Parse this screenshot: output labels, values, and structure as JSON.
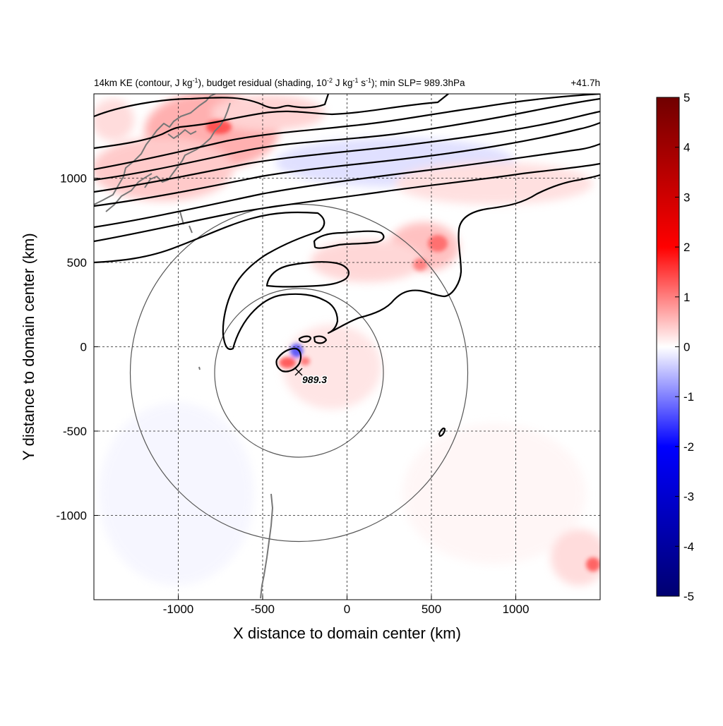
{
  "title_segments": [
    {
      "t": "14km KE (contour, J kg"
    },
    {
      "t": "-1",
      "sup": true
    },
    {
      "t": "), budget residual (shading, 10"
    },
    {
      "t": "-2",
      "sup": true
    },
    {
      "t": " J kg"
    },
    {
      "t": "-1",
      "sup": true
    },
    {
      "t": " s"
    },
    {
      "t": "-1",
      "sup": true
    },
    {
      "t": "); min SLP= 989.3hPa"
    }
  ],
  "time_label": "+41.7h",
  "xlabel": "X distance to domain center (km)",
  "ylabel": "Y distance to domain center (km)",
  "x_range": [
    -1500,
    1500
  ],
  "y_range": [
    -1500,
    1500
  ],
  "x_ticks": [
    {
      "value": -1000,
      "label": "-1000"
    },
    {
      "value": -500,
      "label": "-500"
    },
    {
      "value": 0,
      "label": "0"
    },
    {
      "value": 500,
      "label": "500"
    },
    {
      "value": 1000,
      "label": "1000"
    }
  ],
  "y_ticks": [
    {
      "value": 1000,
      "label": "1000"
    },
    {
      "value": 500,
      "label": "500"
    },
    {
      "value": 0,
      "label": "0"
    },
    {
      "value": -500,
      "label": "-500"
    },
    {
      "value": -1000,
      "label": "-1000"
    }
  ],
  "colorbar": {
    "range": [
      -5,
      5
    ],
    "ticks": [
      {
        "value": 5,
        "label": "5"
      },
      {
        "value": 4,
        "label": "4"
      },
      {
        "value": 3,
        "label": "3"
      },
      {
        "value": 2,
        "label": "2"
      },
      {
        "value": 1,
        "label": "1"
      },
      {
        "value": 0,
        "label": "0"
      },
      {
        "value": -1,
        "label": "-1"
      },
      {
        "value": -2,
        "label": "-2"
      },
      {
        "value": -3,
        "label": "-3"
      },
      {
        "value": -4,
        "label": "-4"
      },
      {
        "value": -5,
        "label": "-5"
      }
    ],
    "colors": [
      "#000070",
      "#0000ff",
      "#ffffff",
      "#ff0000",
      "#700000"
    ]
  },
  "storm_center": {
    "x": -285,
    "y": -150,
    "label": "989.3"
  },
  "range_rings_km": [
    500,
    1000
  ],
  "colors": {
    "contour": "#000000",
    "ring": "#555555",
    "coastline": "#777777",
    "positive": "#ff0000",
    "negative": "#0000ff"
  }
}
